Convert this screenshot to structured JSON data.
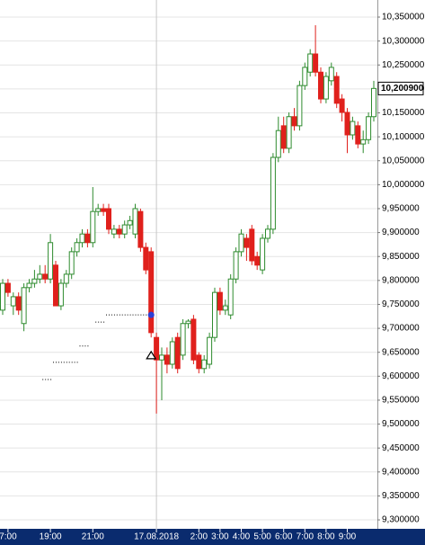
{
  "chart_data": {
    "type": "candlestick",
    "categories": [
      null,
      "7:00",
      null,
      null,
      null,
      null,
      null,
      null,
      null,
      "19:00",
      null,
      null,
      null,
      null,
      null,
      null,
      null,
      "21:00",
      null,
      null,
      null,
      null,
      null,
      null,
      null,
      null,
      null,
      null,
      null,
      "17.08.2018",
      null,
      null,
      null,
      null,
      null,
      null,
      null,
      "2:00",
      null,
      null,
      null,
      "3:00",
      null,
      null,
      null,
      "4:00",
      null,
      null,
      null,
      "5:00",
      null,
      null,
      null,
      "6:00",
      null,
      null,
      null,
      "7:00",
      null,
      null,
      null,
      "8:00",
      null,
      null,
      null,
      "9:00",
      null,
      null,
      null,
      null,
      null
    ],
    "open": [
      9.738,
      9.794,
      9.747,
      9.766,
      9.71,
      9.785,
      9.794,
      9.803,
      9.813,
      9.803,
      9.832,
      9.747,
      9.794,
      9.813,
      9.86,
      9.879,
      9.897,
      9.879,
      9.944,
      9.95,
      9.95,
      9.897,
      9.907,
      9.897,
      9.916,
      9.897,
      9.944,
      9.869,
      9.86,
      9.681,
      9.634,
      9.644,
      9.625,
      9.681,
      9.644,
      9.71,
      9.719,
      9.644,
      9.616,
      9.625,
      9.681,
      9.775,
      9.738,
      9.728,
      9.803,
      9.86,
      9.888,
      9.907,
      9.85,
      9.822,
      9.888,
      9.907,
      10.057,
      10.123,
      10.076,
      10.142,
      10.123,
      10.207,
      10.235,
      10.273,
      10.235,
      10.179,
      10.217,
      10.226,
      10.179,
      10.151,
      10.104,
      10.123,
      10.085,
      10.094,
      10.142
    ],
    "high": [
      9.803,
      9.803,
      9.775,
      9.775,
      9.794,
      9.803,
      9.822,
      9.832,
      9.832,
      9.897,
      9.841,
      9.803,
      9.822,
      9.869,
      9.888,
      9.907,
      9.907,
      9.995,
      9.96,
      9.96,
      9.96,
      9.916,
      9.916,
      9.925,
      9.935,
      9.96,
      9.95,
      9.879,
      9.869,
      9.691,
      9.66,
      9.66,
      9.681,
      9.691,
      9.719,
      9.719,
      9.728,
      9.65,
      9.644,
      9.691,
      9.785,
      9.785,
      9.76,
      9.813,
      9.869,
      9.907,
      9.897,
      9.916,
      9.86,
      9.897,
      9.916,
      10.066,
      10.142,
      10.142,
      10.151,
      10.16,
      10.217,
      10.255,
      10.283,
      10.333,
      10.245,
      10.235,
      10.255,
      10.235,
      10.189,
      10.16,
      10.142,
      10.132,
      10.113,
      10.151,
      10.217
    ],
    "low": [
      9.728,
      9.766,
      9.728,
      9.728,
      9.694,
      9.775,
      9.785,
      9.794,
      9.794,
      9.794,
      9.747,
      9.738,
      9.785,
      9.803,
      9.85,
      9.869,
      9.869,
      9.869,
      9.935,
      9.935,
      9.897,
      9.888,
      9.888,
      9.888,
      9.907,
      9.888,
      9.86,
      9.813,
      9.681,
      9.522,
      9.55,
      9.606,
      9.616,
      9.606,
      9.634,
      9.7,
      9.625,
      9.606,
      9.606,
      9.616,
      9.672,
      9.728,
      9.728,
      9.719,
      9.794,
      9.85,
      9.841,
      9.832,
      9.822,
      9.813,
      9.879,
      9.897,
      10.047,
      10.066,
      10.066,
      10.113,
      10.113,
      10.198,
      10.226,
      10.226,
      10.17,
      10.17,
      10.207,
      10.16,
      10.132,
      10.066,
      10.094,
      10.076,
      10.066,
      10.085,
      10.132
    ],
    "close": [
      9.794,
      9.775,
      9.766,
      9.738,
      9.785,
      9.794,
      9.803,
      9.813,
      9.803,
      9.879,
      9.747,
      9.794,
      9.813,
      9.86,
      9.879,
      9.897,
      9.879,
      9.944,
      9.95,
      9.944,
      9.907,
      9.907,
      9.897,
      9.916,
      9.925,
      9.95,
      9.869,
      9.822,
      9.691,
      9.634,
      9.644,
      9.625,
      9.672,
      9.616,
      9.71,
      9.715,
      9.634,
      9.616,
      9.634,
      9.681,
      9.775,
      9.738,
      9.747,
      9.803,
      9.86,
      9.897,
      9.869,
      9.841,
      9.832,
      9.888,
      9.907,
      10.057,
      10.113,
      10.076,
      10.142,
      10.123,
      10.207,
      10.245,
      10.273,
      10.235,
      10.179,
      10.226,
      10.245,
      10.17,
      10.151,
      10.104,
      10.132,
      10.085,
      10.094,
      10.142,
      10.201
    ],
    "indicator": [
      null,
      null,
      null,
      null,
      null,
      null,
      null,
      null,
      9.593,
      9.593,
      9.629,
      9.629,
      9.629,
      9.629,
      9.629,
      9.663,
      9.663,
      null,
      9.713,
      9.713,
      9.728,
      9.728,
      9.728,
      9.728,
      9.728,
      9.728,
      9.728,
      9.728,
      9.728,
      null,
      null,
      null,
      null,
      null,
      null,
      null,
      null,
      null,
      null,
      null,
      null,
      null,
      null,
      null,
      null,
      null,
      null,
      null,
      null,
      null,
      null,
      null,
      null,
      null,
      null,
      null,
      null,
      null,
      null,
      null,
      null,
      null,
      null,
      null,
      null,
      null,
      null,
      null,
      null,
      null,
      null
    ],
    "markers": [
      {
        "at": 28,
        "value": 9.728,
        "shape": "circle",
        "color": "#2b3fd6"
      },
      {
        "at": 28,
        "value": 9.644,
        "shape": "triangle",
        "color": "#000000"
      }
    ],
    "up_color": "#2e8b2e",
    "down_color": "#e0201c",
    "last_price": {
      "value": 10.2009,
      "label": "10,200900"
    },
    "separator_at": 29,
    "ylim": [
      9.2813,
      10.3857
    ],
    "yticks": [
      {
        "value": 10.35,
        "label": "10,350000"
      },
      {
        "value": 10.3,
        "label": "10,300000"
      },
      {
        "value": 10.25,
        "label": "10,250000"
      },
      {
        "value": 10.2,
        "label": "10,200000"
      },
      {
        "value": 10.15,
        "label": "10,150000"
      },
      {
        "value": 10.1,
        "label": "10,100000"
      },
      {
        "value": 10.05,
        "label": "10,050000"
      },
      {
        "value": 10.0,
        "label": "10,000000"
      },
      {
        "value": 9.95,
        "label": "9,950000"
      },
      {
        "value": 9.9,
        "label": "9,900000"
      },
      {
        "value": 9.85,
        "label": "9,850000"
      },
      {
        "value": 9.8,
        "label": "9,800000"
      },
      {
        "value": 9.75,
        "label": "9,750000"
      },
      {
        "value": 9.7,
        "label": "9,700000"
      },
      {
        "value": 9.65,
        "label": "9,650000"
      },
      {
        "value": 9.6,
        "label": "9,600000"
      },
      {
        "value": 9.55,
        "label": "9,550000"
      },
      {
        "value": 9.5,
        "label": "9,500000"
      },
      {
        "value": 9.45,
        "label": "9,450000"
      },
      {
        "value": 9.4,
        "label": "9,400000"
      },
      {
        "value": 9.35,
        "label": "9,350000"
      },
      {
        "value": 9.3,
        "label": "9,300000"
      }
    ],
    "grid": true
  }
}
